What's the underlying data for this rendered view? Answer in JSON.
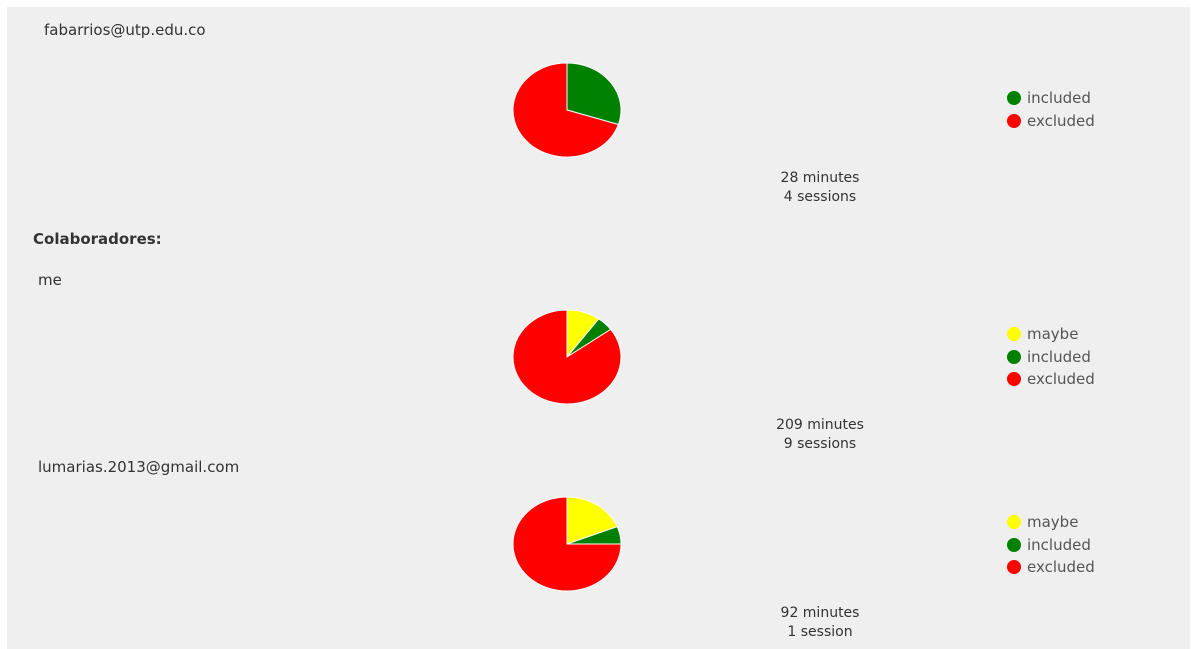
{
  "owner": {
    "email": "fabarrios@utp.edu.co",
    "minutes": "28 minutes",
    "sessions": "4 sessions",
    "legend": [
      {
        "label": "included",
        "color": "#008000"
      },
      {
        "label": "excluded",
        "color": "#ff0000"
      }
    ]
  },
  "collaborators_title": "Colaboradores:",
  "collaborators": [
    {
      "name": "me",
      "minutes": "209 minutes",
      "sessions": "9 sessions",
      "legend": [
        {
          "label": "maybe",
          "color": "#ffff00"
        },
        {
          "label": "included",
          "color": "#008000"
        },
        {
          "label": "excluded",
          "color": "#ff0000"
        }
      ]
    },
    {
      "name": "lumarias.2013@gmail.com",
      "minutes": "92 minutes",
      "sessions": "1 session",
      "legend": [
        {
          "label": "maybe",
          "color": "#ffff00"
        },
        {
          "label": "included",
          "color": "#008000"
        },
        {
          "label": "excluded",
          "color": "#ff0000"
        }
      ]
    }
  ],
  "chart_data": [
    {
      "type": "pie",
      "categories": [
        "included",
        "excluded"
      ],
      "values": [
        0.3,
        0.7
      ],
      "colors": [
        "#008000",
        "#ff0000"
      ],
      "legend": "right"
    },
    {
      "type": "pie",
      "categories": [
        "maybe",
        "included",
        "excluded"
      ],
      "values": [
        0.1,
        0.05,
        0.85
      ],
      "colors": [
        "#ffff00",
        "#008000",
        "#ff0000"
      ],
      "legend": "right"
    },
    {
      "type": "pie",
      "categories": [
        "maybe",
        "included",
        "excluded"
      ],
      "values": [
        0.19,
        0.06,
        0.75
      ],
      "colors": [
        "#ffff00",
        "#008000",
        "#ff0000"
      ],
      "legend": "right"
    }
  ]
}
